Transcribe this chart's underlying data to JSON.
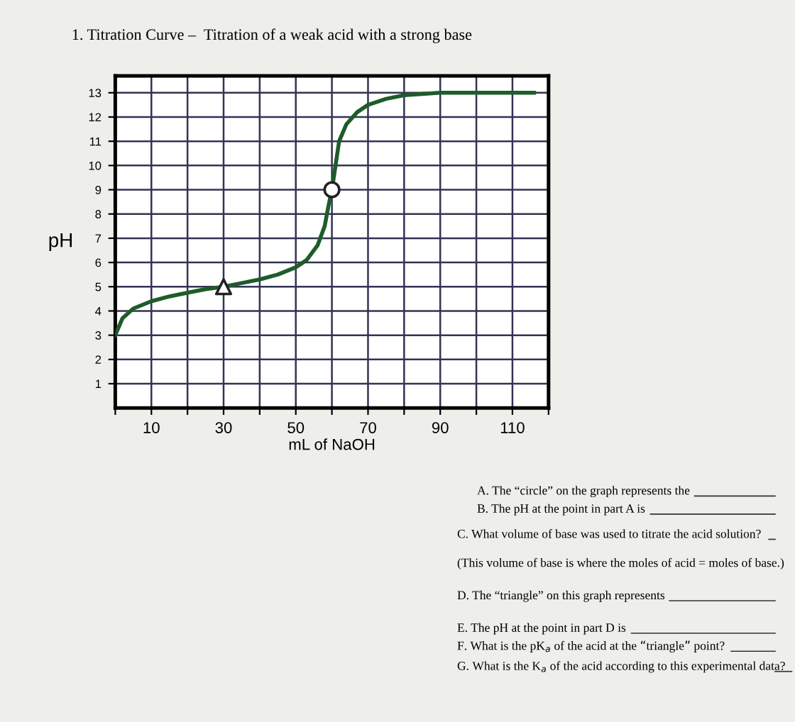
{
  "chart_data": {
    "type": "line",
    "title": "1. Titration Curve –  Titration of a weak acid with a strong base",
    "xlabel": "mL of NaOH",
    "ylabel": "pH",
    "xlim": [
      0,
      120
    ],
    "xticks": [
      {
        "value": 0,
        "label": null
      },
      10,
      {
        "value": 20,
        "label": null
      },
      30,
      {
        "value": 40,
        "label": null
      },
      50,
      {
        "value": 60,
        "label": null
      },
      70,
      {
        "value": 80,
        "label": null
      },
      90,
      {
        "value": 100,
        "label": null
      },
      110,
      {
        "value": 120,
        "label": null
      }
    ],
    "ylim": [
      0,
      13.7
    ],
    "yticks": [
      1,
      2,
      3,
      4,
      5,
      6,
      7,
      8,
      9,
      10,
      11,
      12,
      13
    ],
    "grid": true,
    "line_style": "solid",
    "series": [
      {
        "color": "#1e5c2a",
        "marker": "none",
        "x": [
          0,
          2,
          5,
          10,
          15,
          20,
          25,
          30,
          35,
          40,
          45,
          50,
          53,
          56,
          58,
          59,
          60,
          61,
          62,
          64,
          67,
          70,
          75,
          80,
          90,
          100,
          116
        ],
        "values": [
          3,
          3.7,
          4.1,
          4.4,
          4.6,
          4.75,
          4.9,
          5,
          5.15,
          5.3,
          5.5,
          5.8,
          6.1,
          6.7,
          7.5,
          8.3,
          9,
          10,
          11,
          11.7,
          12.2,
          12.5,
          12.75,
          12.9,
          13,
          13,
          13
        ]
      },
      {
        "type": "scatter",
        "color": "#222222",
        "marker": "circle",
        "x": [
          60
        ],
        "values": [
          9
        ]
      },
      {
        "type": "scatter",
        "color": "#222222",
        "marker": "triangle",
        "x": [
          30
        ],
        "values": [
          5
        ]
      }
    ],
    "annotations": [
      "A. The “circle” on the graph represents the",
      "B. The pH at the point in part A is",
      "C. What volume of base was used to titrate the acid solution?",
      "(This volume of base is where the moles of acid = moles of base.)",
      "D. The “triangle” on this graph represents",
      "E. The pH at the point in part D is",
      "F. What is the pK$_{a}$ of the acid at the “triangle” point?",
      "G. What is the K$_{a}$ of the acid according to this experimental data?"
    ]
  }
}
